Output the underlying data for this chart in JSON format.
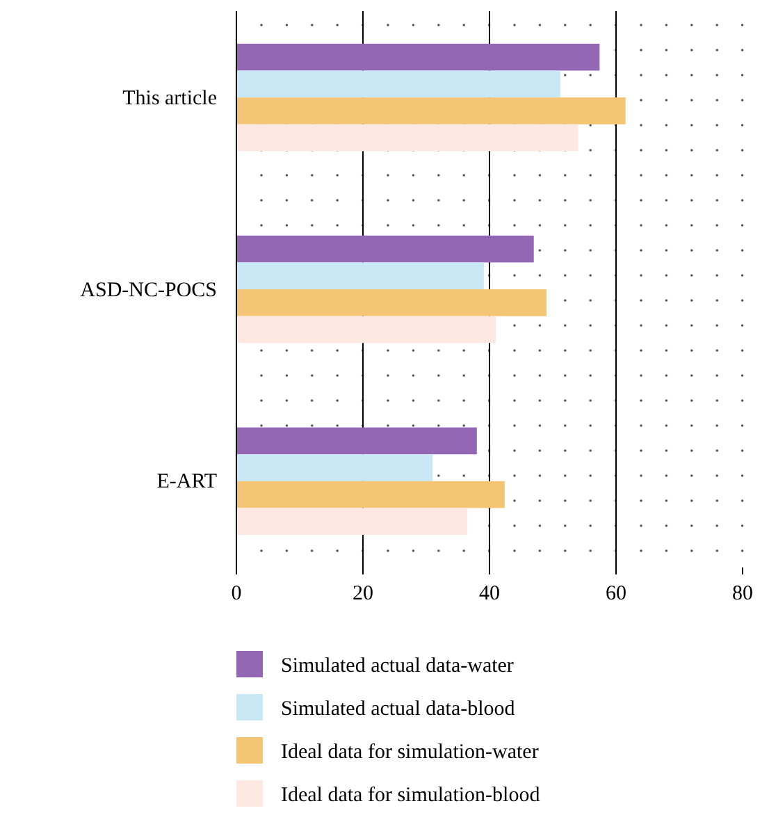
{
  "chart_data": {
    "type": "bar",
    "orientation": "horizontal",
    "categories": [
      "This article",
      "ASD-NC-POCS",
      "E-ART"
    ],
    "series": [
      {
        "name": "Simulated actual data-water",
        "color": "#9467b5",
        "values": [
          57.4,
          47,
          38
        ]
      },
      {
        "name": "Simulated actual data-blood",
        "color": "#c8e8f5",
        "values": [
          51.2,
          39.1,
          31
        ]
      },
      {
        "name": "Ideal data for simulation-water",
        "color": "#f5c576",
        "values": [
          61.5,
          49,
          42.4
        ]
      },
      {
        "name": "Ideal data for simulation-blood",
        "color": "#fde8e2",
        "values": [
          54,
          41,
          36.5
        ]
      }
    ],
    "xlim": [
      0,
      80
    ],
    "xticks": [
      0,
      20,
      40,
      60,
      80
    ],
    "grid": "x",
    "legend": "bottom"
  }
}
